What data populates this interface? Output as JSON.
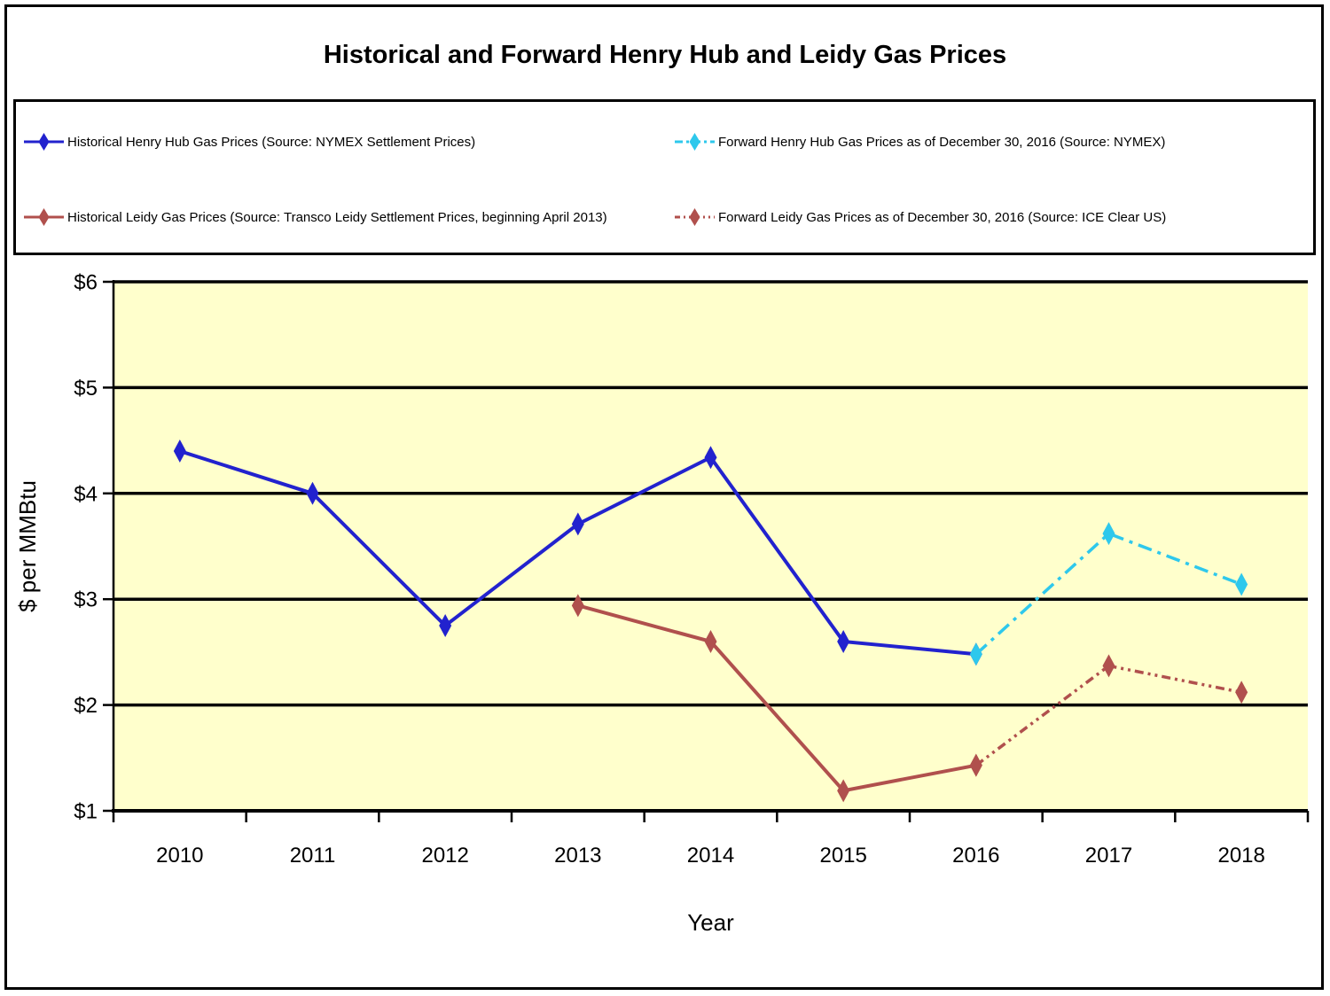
{
  "chart_data": {
    "type": "line",
    "title": "Historical and Forward Henry Hub and Leidy Gas Prices",
    "xlabel": "Year",
    "ylabel": "$ per MMBtu",
    "ylim": [
      1,
      6
    ],
    "ytick_step": 1,
    "ytick_prefix": "$",
    "plot_bg": "#FFFFCC",
    "grid": "horizontal",
    "legend_position": "top",
    "categories": [
      "2010",
      "2011",
      "2012",
      "2013",
      "2014",
      "2015",
      "2016",
      "2017",
      "2018"
    ],
    "series": [
      {
        "id": "hh-hist",
        "name": "Historical Henry Hub Gas Prices (Source: NYMEX Settlement Prices)",
        "color": "#2222CE",
        "dash": "solid",
        "marker": "diamond",
        "x": [
          "2010",
          "2011",
          "2012",
          "2013",
          "2014",
          "2015",
          "2016"
        ],
        "values": [
          4.4,
          4.0,
          2.75,
          3.71,
          4.34,
          2.6,
          2.48
        ]
      },
      {
        "id": "hh-fwd",
        "name": "Forward Henry Hub Gas Prices as of December 30, 2016 (Source: NYMEX)",
        "color": "#2EC8EC",
        "dash": "dash-dot",
        "marker": "diamond",
        "x": [
          "2016",
          "2017",
          "2018"
        ],
        "values": [
          2.48,
          3.62,
          3.14
        ]
      },
      {
        "id": "leidy-hist",
        "name": "Historical Leidy Gas Prices (Source: Transco Leidy Settlement Prices, beginning April 2013)",
        "color": "#B0504D",
        "dash": "solid",
        "marker": "diamond",
        "x": [
          "2013",
          "2014",
          "2015",
          "2016"
        ],
        "values": [
          2.94,
          2.6,
          1.19,
          1.43
        ]
      },
      {
        "id": "leidy-fwd",
        "name": "Forward Leidy Gas Prices as of December 30, 2016 (Source: ICE Clear US)",
        "color": "#B0504D",
        "dash": "dash-dot-dot",
        "marker": "diamond",
        "x": [
          "2016",
          "2017",
          "2018"
        ],
        "values": [
          1.43,
          2.37,
          2.12
        ]
      }
    ]
  }
}
